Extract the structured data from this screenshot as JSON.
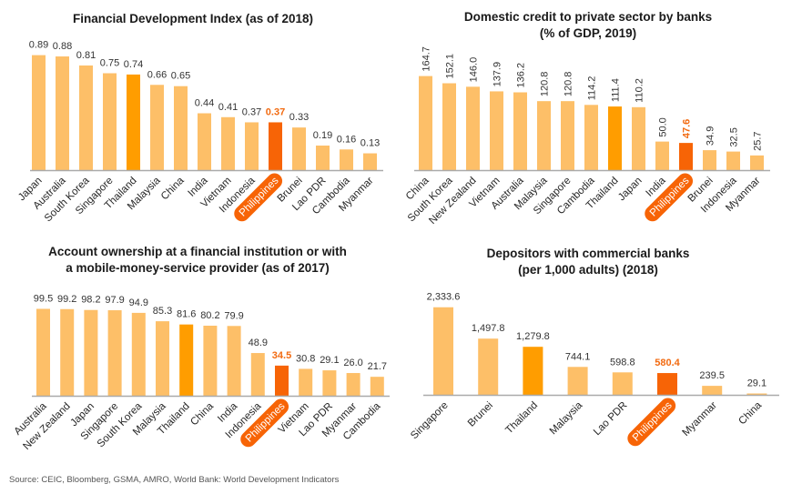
{
  "colors": {
    "bar": "#fdbf68",
    "bar_thailand": "#ff9d00",
    "bar_philippines": "#f76406",
    "highlight_label": "#f26a10",
    "axis": "#aaaaaa"
  },
  "source": "Source: CEIC, Bloomberg, GSMA, AMRO, World Bank: World Development Indicators",
  "chart_data": [
    {
      "type": "bar",
      "title": "Financial Development Index (as of 2018)",
      "subtitle": "",
      "xlabel": "",
      "ylabel": "",
      "ylim": [
        0,
        1
      ],
      "grid": false,
      "label_orientation": "horizontal",
      "categories": [
        "Japan",
        "Australia",
        "South Korea",
        "Singapore",
        "Thailand",
        "Malaysia",
        "China",
        "India",
        "Vietnam",
        "Indonesia",
        "Philippines",
        "Brunei",
        "Lao PDR",
        "Cambodia",
        "Myanmar"
      ],
      "values": [
        0.89,
        0.88,
        0.81,
        0.75,
        0.74,
        0.66,
        0.65,
        0.44,
        0.41,
        0.37,
        0.37,
        0.33,
        0.19,
        0.16,
        0.13
      ],
      "value_labels": [
        "0.89",
        "0.88",
        "0.81",
        "0.75",
        "0.74",
        "0.66",
        "0.65",
        "0.44",
        "0.41",
        "0.37",
        "0.37",
        "0.33",
        "0.19",
        "0.16",
        "0.13"
      ],
      "highlight": {
        "Thailand": "secondary",
        "Philippines": "primary"
      }
    },
    {
      "type": "bar",
      "title": "Domestic credit to private sector by banks",
      "subtitle": "(% of GDP, 2019)",
      "xlabel": "",
      "ylabel": "",
      "ylim": [
        0,
        180
      ],
      "grid": false,
      "label_orientation": "vertical",
      "categories": [
        "China",
        "South Korea",
        "New Zealand",
        "Vietnam",
        "Australia",
        "Malaysia",
        "Singapore",
        "Cambodia",
        "Thailand",
        "Japan",
        "India",
        "Philippines",
        "Brunei",
        "Indonesia",
        "Myanmar"
      ],
      "values": [
        164.7,
        152.1,
        146.0,
        137.9,
        136.2,
        120.8,
        120.8,
        114.2,
        111.4,
        110.2,
        50.0,
        47.6,
        34.9,
        32.5,
        25.7
      ],
      "value_labels": [
        "164.7",
        "152.1",
        "146.0",
        "137.9",
        "136.2",
        "120.8",
        "120.8",
        "114.2",
        "111.4",
        "110.2",
        "50.0",
        "47.6",
        "34.9",
        "32.5",
        "25.7"
      ],
      "highlight": {
        "Thailand": "secondary",
        "Philippines": "primary"
      }
    },
    {
      "type": "bar",
      "title": "Account ownership at a financial institution or with",
      "subtitle": "a mobile-money-service provider (as of 2017)",
      "xlabel": "",
      "ylabel": "",
      "ylim": [
        0,
        100
      ],
      "grid": false,
      "label_orientation": "horizontal",
      "categories": [
        "Australia",
        "New Zealand",
        "Japan",
        "Singapore",
        "South Korea",
        "Malaysia",
        "Thailand",
        "China",
        "India",
        "Indonesia",
        "Philippines",
        "Vietnam",
        "Lao PDR",
        "Myanmar",
        "Cambodia"
      ],
      "values": [
        99.5,
        99.2,
        98.2,
        97.9,
        94.9,
        85.3,
        81.6,
        80.2,
        79.9,
        48.9,
        34.5,
        30.8,
        29.1,
        26.0,
        21.7
      ],
      "value_labels": [
        "99.5",
        "99.2",
        "98.2",
        "97.9",
        "94.9",
        "85.3",
        "81.6",
        "80.2",
        "79.9",
        "48.9",
        "34.5",
        "30.8",
        "29.1",
        "26.0",
        "21.7"
      ],
      "highlight": {
        "Thailand": "secondary",
        "Philippines": "primary"
      }
    },
    {
      "type": "bar",
      "title": "Depositors with commercial banks",
      "subtitle": "(per 1,000 adults) (2018)",
      "xlabel": "",
      "ylabel": "",
      "ylim": [
        0,
        2400
      ],
      "grid": false,
      "label_orientation": "horizontal",
      "categories": [
        "Singapore",
        "Brunei",
        "Thailand",
        "Malaysia",
        "Lao PDR",
        "Philippines",
        "Myanmar",
        "China"
      ],
      "values": [
        2333.6,
        1497.8,
        1279.8,
        744.1,
        598.8,
        580.4,
        239.5,
        29.1
      ],
      "value_labels": [
        "2,333.6",
        "1,497.8",
        "1,279.8",
        "744.1",
        "598.8",
        "580.4",
        "239.5",
        "29.1"
      ],
      "highlight": {
        "Thailand": "secondary",
        "Philippines": "primary"
      }
    }
  ]
}
